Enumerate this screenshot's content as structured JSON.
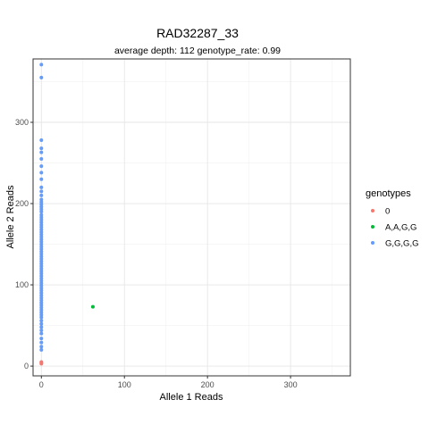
{
  "chart_data": {
    "type": "scatter",
    "title": "RAD32287_33",
    "subtitle": "average depth:  112  genotype_rate:  0.99",
    "xlabel": "Allele 1 Reads",
    "ylabel": "Allele 2 Reads",
    "xlim": [
      -10,
      372
    ],
    "ylim": [
      -12,
      378
    ],
    "x_ticks": [
      0,
      100,
      200,
      300
    ],
    "y_ticks": [
      0,
      100,
      200,
      300
    ],
    "grid": true,
    "legend_position": "right",
    "legend_title": "genotypes",
    "series": [
      {
        "name": "0",
        "color": "#F8766D",
        "points": [
          [
            0,
            3
          ],
          [
            0,
            4
          ],
          [
            0,
            5
          ]
        ]
      },
      {
        "name": "A,A,G,G",
        "color": "#00BA38",
        "points": [
          [
            62,
            73
          ]
        ]
      },
      {
        "name": "G,G,G,G",
        "color": "#619CFF",
        "points": [
          [
            0,
            371
          ],
          [
            0,
            355
          ],
          [
            0,
            278
          ],
          [
            0,
            268
          ],
          [
            0,
            263
          ],
          [
            0,
            255
          ],
          [
            0,
            246
          ],
          [
            0,
            238
          ],
          [
            0,
            230
          ],
          [
            0,
            220
          ],
          [
            0,
            215
          ],
          [
            0,
            210
          ],
          [
            0,
            205
          ],
          [
            0,
            202
          ],
          [
            0,
            199
          ],
          [
            0,
            196
          ],
          [
            0,
            193
          ],
          [
            0,
            190
          ],
          [
            0,
            186
          ],
          [
            0,
            183
          ],
          [
            0,
            180
          ],
          [
            0,
            177
          ],
          [
            0,
            174
          ],
          [
            0,
            171
          ],
          [
            0,
            168
          ],
          [
            0,
            165
          ],
          [
            0,
            162
          ],
          [
            0,
            159
          ],
          [
            0,
            156
          ],
          [
            0,
            153
          ],
          [
            0,
            150
          ],
          [
            0,
            147
          ],
          [
            0,
            144
          ],
          [
            0,
            141
          ],
          [
            0,
            138
          ],
          [
            0,
            135
          ],
          [
            0,
            132
          ],
          [
            0,
            129
          ],
          [
            0,
            126
          ],
          [
            0,
            123
          ],
          [
            0,
            120
          ],
          [
            0,
            117
          ],
          [
            0,
            114
          ],
          [
            0,
            111
          ],
          [
            0,
            108
          ],
          [
            0,
            105
          ],
          [
            0,
            102
          ],
          [
            0,
            99
          ],
          [
            0,
            96
          ],
          [
            0,
            93
          ],
          [
            0,
            90
          ],
          [
            0,
            87
          ],
          [
            0,
            84
          ],
          [
            0,
            81
          ],
          [
            0,
            78
          ],
          [
            0,
            75
          ],
          [
            0,
            72
          ],
          [
            0,
            69
          ],
          [
            0,
            66
          ],
          [
            0,
            63
          ],
          [
            0,
            60
          ],
          [
            0,
            56
          ],
          [
            0,
            52
          ],
          [
            0,
            48
          ],
          [
            0,
            44
          ],
          [
            0,
            40
          ],
          [
            0,
            34
          ],
          [
            0,
            29
          ],
          [
            0,
            24
          ],
          [
            0,
            20
          ]
        ]
      }
    ]
  }
}
